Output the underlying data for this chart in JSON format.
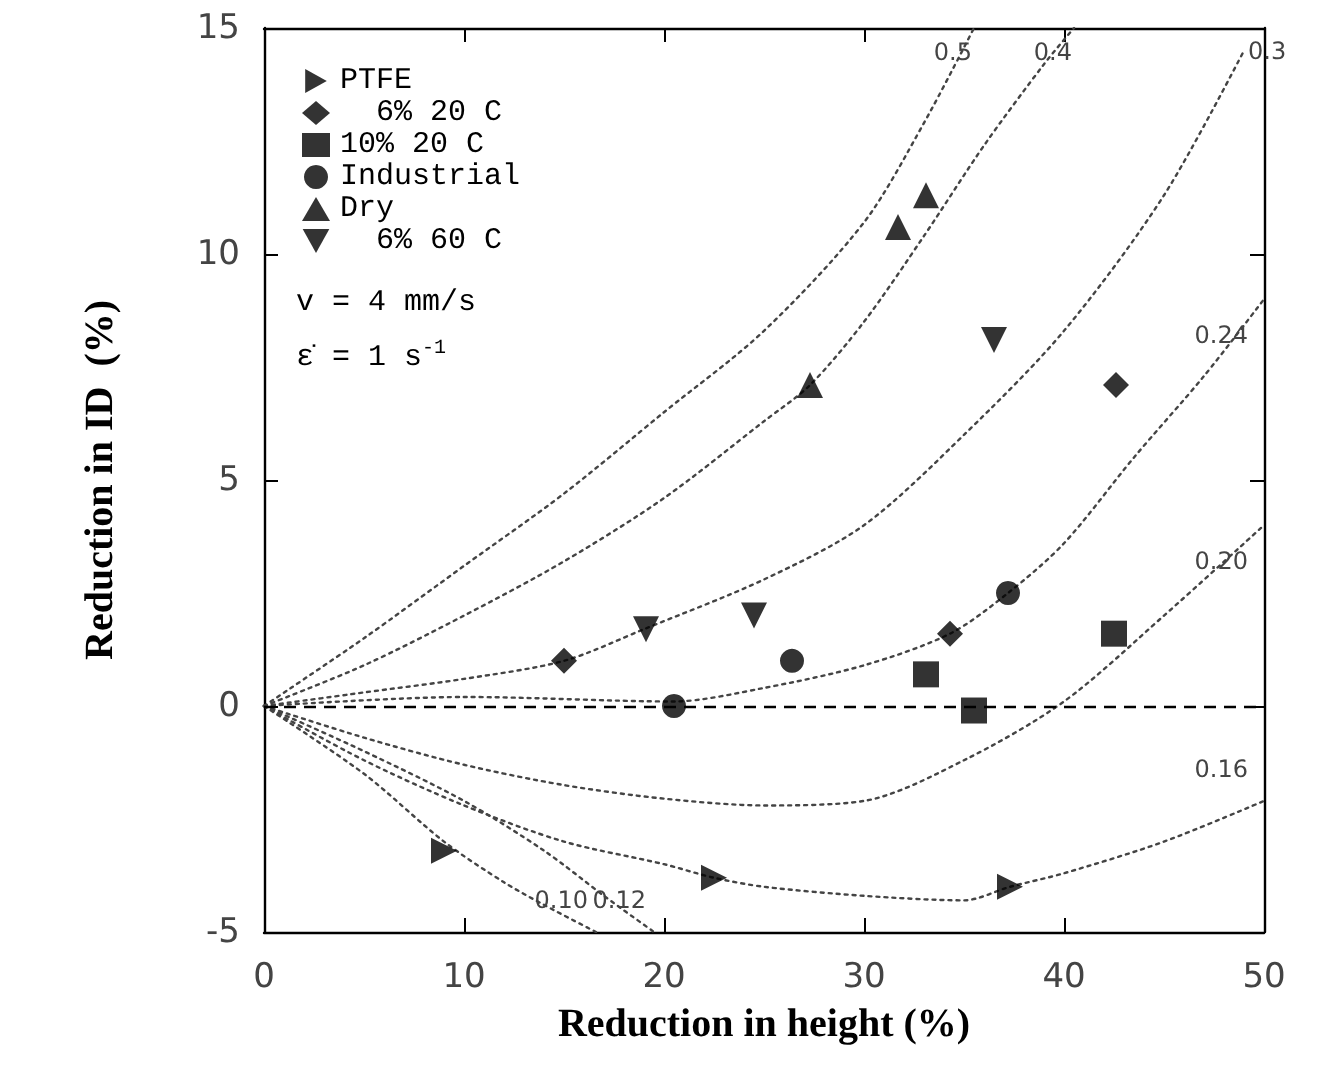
{
  "chart_data": {
    "type": "scatter",
    "xlabel": "Reduction in height (%)",
    "ylabel": "Reduction in ID  (%)",
    "xlim": [
      0,
      50
    ],
    "xticks": [
      0,
      10,
      20,
      30,
      40,
      50
    ],
    "ylim": [
      -5,
      15
    ],
    "yticks": [
      -5,
      0,
      5,
      10,
      15
    ],
    "grid": false,
    "legend": "top left",
    "annotations": [
      "v = 4 mm/s",
      "ε̇ = 1 s$^{-1}$"
    ],
    "ref_lines": [
      {
        "axis": "y",
        "value": 0,
        "color": "#000000",
        "line_style": "dashed"
      }
    ],
    "series": [
      {
        "name": "PTFE",
        "color": "#000000",
        "marker": "triangle-right",
        "x": [
          9.0,
          22.5,
          37.3
        ],
        "values": [
          -3.2,
          -3.8,
          -4.0
        ]
      },
      {
        "name": "  6% 20 C",
        "color": "#000000",
        "marker": "diamond",
        "x": [
          15.0,
          34.3,
          42.6
        ],
        "values": [
          1.0,
          1.6,
          7.1
        ]
      },
      {
        "name": "10% 20 C",
        "color": "#000000",
        "marker": "square",
        "x": [
          33.1,
          35.5,
          42.5
        ],
        "values": [
          0.7,
          -0.1,
          1.6
        ]
      },
      {
        "name": "Industrial",
        "color": "#000000",
        "marker": "circle",
        "x": [
          20.5,
          26.4,
          37.2
        ],
        "values": [
          0.0,
          1.0,
          2.5
        ]
      },
      {
        "name": "Dry",
        "color": "#000000",
        "marker": "triangle",
        "x": [
          27.3,
          31.7,
          33.1
        ],
        "values": [
          7.1,
          10.6,
          11.3
        ]
      },
      {
        "name": "  6% 60 C",
        "color": "#000000",
        "marker": "triangle-down",
        "x": [
          19.1,
          24.5,
          36.5
        ],
        "values": [
          1.7,
          2.0,
          8.1
        ]
      },
      {
        "name": "0.5",
        "type": "line",
        "color": "#444444",
        "marker": "none",
        "line_style": "dotted",
        "x": [
          0,
          5,
          10,
          15,
          20,
          25,
          30,
          33,
          35.5
        ],
        "values": [
          0,
          1.5,
          3.1,
          4.7,
          6.5,
          8.3,
          10.7,
          12.9,
          15
        ]
      },
      {
        "name": "0.4",
        "type": "line",
        "color": "#444444",
        "marker": "none",
        "line_style": "dotted",
        "x": [
          0,
          5,
          10,
          15,
          20,
          25,
          27.3,
          30,
          33,
          36,
          39,
          40.5
        ],
        "values": [
          0,
          0.9,
          2.0,
          3.2,
          4.6,
          6.3,
          7.1,
          8.5,
          10.4,
          12.4,
          14.2,
          15
        ]
      },
      {
        "name": "0.3",
        "type": "line",
        "color": "#444444",
        "marker": "none",
        "line_style": "dotted",
        "x": [
          0,
          5,
          10,
          15,
          19,
          25,
          30,
          35,
          40,
          45,
          49
        ],
        "values": [
          0,
          0.3,
          0.6,
          1.0,
          1.7,
          2.8,
          4.0,
          6.0,
          8.3,
          11.3,
          14.5
        ]
      },
      {
        "name": "0.24",
        "type": "line",
        "color": "#444444",
        "marker": "none",
        "line_style": "dotted",
        "x": [
          0,
          10,
          20.5,
          25,
          30,
          34.3,
          37.2,
          40,
          43.5,
          47,
          50
        ],
        "values": [
          0,
          0.2,
          0.1,
          0.4,
          0.9,
          1.6,
          2.5,
          3.6,
          5.5,
          7.3,
          9.0
        ]
      },
      {
        "name": "0.20",
        "type": "line",
        "color": "#444444",
        "marker": "none",
        "line_style": "dotted",
        "x": [
          0,
          5,
          10,
          15,
          20,
          25,
          30,
          35,
          40,
          45,
          50
        ],
        "values": [
          0,
          -0.7,
          -1.3,
          -1.75,
          -2.05,
          -2.2,
          -2.1,
          -1.2,
          0.1,
          2.0,
          4.0
        ]
      },
      {
        "name": "0.16",
        "type": "line",
        "color": "#444444",
        "marker": "none",
        "line_style": "dotted",
        "x": [
          0,
          5,
          10,
          15,
          20,
          22.5,
          25,
          30,
          35,
          37.3,
          40,
          45,
          50
        ],
        "values": [
          0,
          -1.2,
          -2.2,
          -3.0,
          -3.5,
          -3.8,
          -4.0,
          -4.2,
          -4.3,
          -4.0,
          -3.7,
          -3.0,
          -2.1
        ]
      },
      {
        "name": "0.12",
        "type": "line",
        "color": "#444444",
        "marker": "none",
        "line_style": "dotted",
        "x": [
          0,
          5,
          10,
          14,
          17,
          19.5
        ],
        "values": [
          0,
          -1.0,
          -2.1,
          -3.2,
          -4.2,
          -5
        ]
      },
      {
        "name": "0.10",
        "type": "line",
        "color": "#444444",
        "marker": "none",
        "line_style": "dotted",
        "x": [
          0,
          5,
          9,
          12,
          14,
          16.6
        ],
        "values": [
          0,
          -1.5,
          -3.0,
          -3.9,
          -4.4,
          -5
        ]
      }
    ]
  }
}
